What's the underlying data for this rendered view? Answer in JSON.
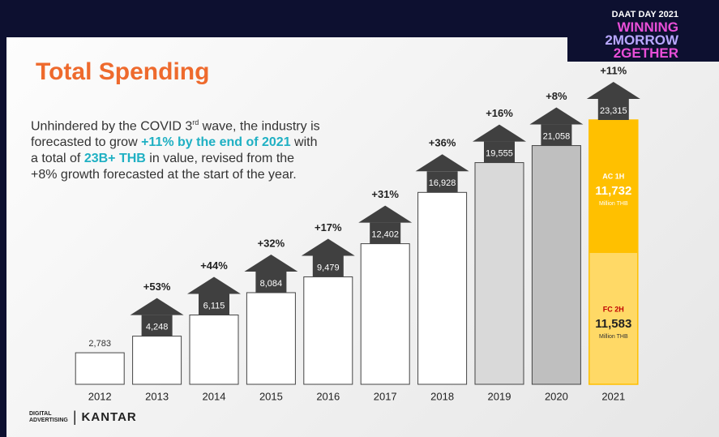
{
  "title": "Total Spending",
  "description": [
    "Unhindered by the COVID 3",
    "rd",
    " wave, the industry is",
    "forecasted to grow ",
    "+11% by the end of 2021",
    " with",
    "a total of ",
    "23B+ THB",
    " in value, revised from the",
    "+8% growth forecasted at the start of the year."
  ],
  "event_logo": [
    "DAAT DAY 2021",
    "WINNING",
    "2MORROW",
    "2GETHER"
  ],
  "footer_logos": [
    "DIGITAL",
    "ADVERTISING",
    "KANTAR"
  ],
  "chart_data": {
    "type": "bar",
    "categories": [
      "2012",
      "2013",
      "2014",
      "2015",
      "2016",
      "2017",
      "2018",
      "2019",
      "2020",
      "2021"
    ],
    "values": [
      2783,
      4248,
      6115,
      8084,
      9479,
      12402,
      16928,
      19555,
      21058,
      23315
    ],
    "value_labels": [
      "2,783",
      "4,248",
      "6,115",
      "8,084",
      "9,479",
      "12,402",
      "16,928",
      "19,555",
      "21,058",
      "23,315"
    ],
    "growth_labels": [
      null,
      "+53%",
      "+44%",
      "+32%",
      "+17%",
      "+31%",
      "+36%",
      "+16%",
      "+8%",
      "+11%"
    ],
    "colors": [
      "#ffffff",
      "#ffffff",
      "#ffffff",
      "#ffffff",
      "#ffffff",
      "#ffffff",
      "#ffffff",
      "#d9d9d9",
      "#bfbfbf",
      "#ffffff"
    ],
    "arrow_color": "#404040",
    "stack_2021": {
      "unit": "Million THB",
      "segments": [
        {
          "name": "FC 2H",
          "value": 11583,
          "value_label": "11,583",
          "color": "#ffd966"
        },
        {
          "name": "AC 1H",
          "value": 11732,
          "value_label": "11,732",
          "color": "#ffc000"
        }
      ]
    }
  }
}
